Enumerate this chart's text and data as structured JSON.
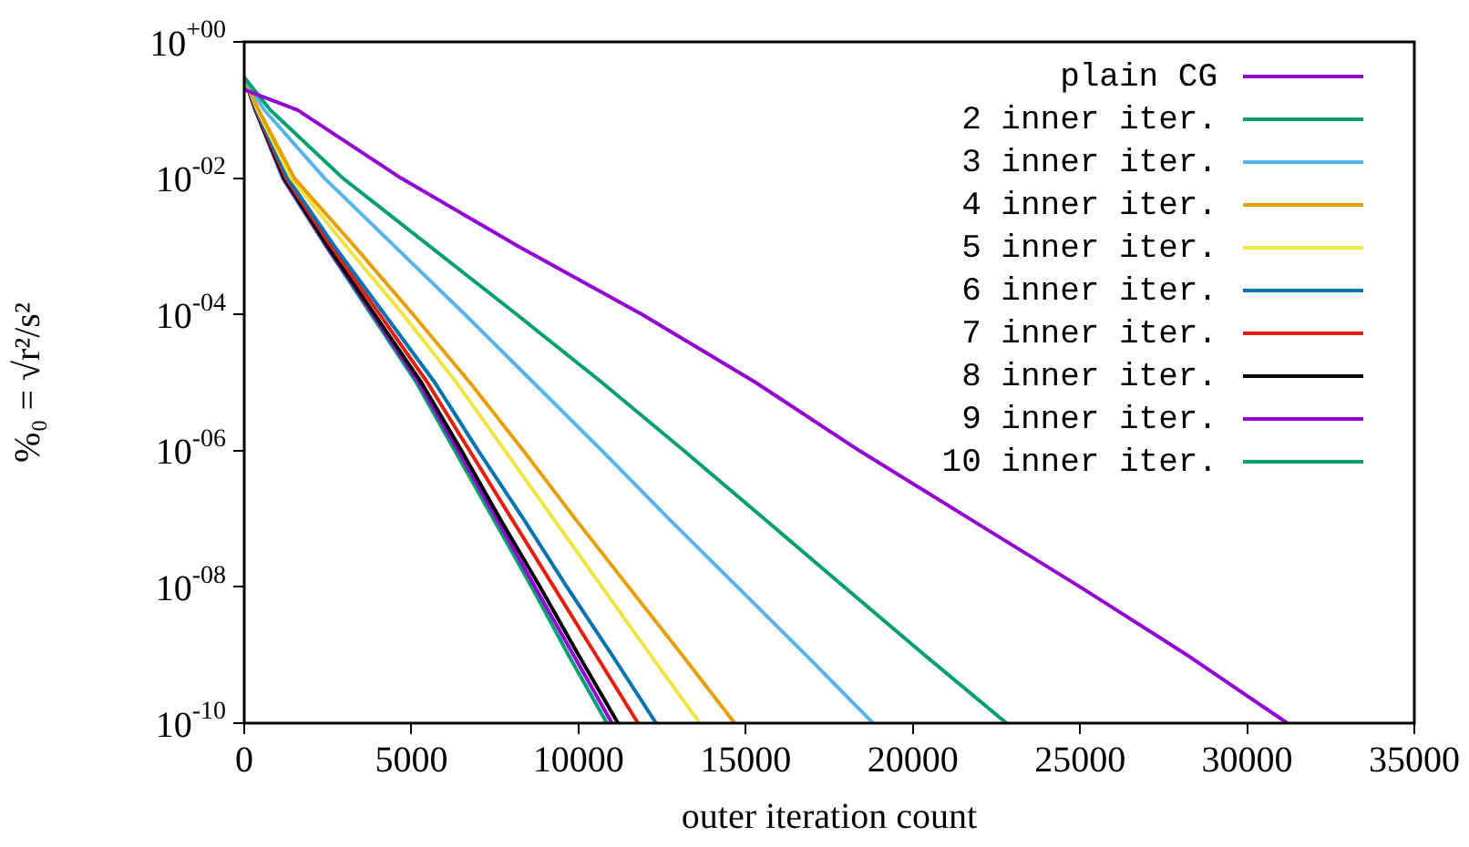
{
  "chart_data": {
    "type": "line",
    "xlabel": "outer iteration count",
    "ylabel": "%₀ = √r²/s²",
    "log": "y",
    "legend": "top right",
    "marker": "none",
    "line_style": "solid",
    "xlim": [
      0,
      35000
    ],
    "xticks": [
      0,
      5000,
      10000,
      15000,
      20000,
      25000,
      30000,
      35000
    ],
    "ylim": [
      1e-10,
      1
    ],
    "yticks": [
      {
        "value": 1,
        "label": "10$^{+00}$"
      },
      {
        "value": 0.01,
        "label": "10$^{-02}$"
      },
      {
        "value": 0.0001,
        "label": "10$^{-04}$"
      },
      {
        "value": 1e-06,
        "label": "10$^{-06}$"
      },
      {
        "value": 1e-08,
        "label": "10$^{-08}$"
      },
      {
        "value": 1e-10,
        "label": "10$^{-10}$"
      }
    ],
    "series": [
      {
        "name": "plain CG",
        "color": "#9400d3",
        "x": [
          0,
          1600,
          4690,
          8200,
          11900,
          15300,
          18400,
          21700,
          25000,
          28200,
          31200
        ],
        "values": [
          0.2,
          0.1,
          0.01,
          0.001,
          0.0001,
          1e-05,
          1e-06,
          1e-07,
          1e-08,
          1e-09,
          1e-10
        ]
      },
      {
        "name": "2 inner iter.",
        "color": "#009e73",
        "x": [
          0,
          780,
          2950,
          5550,
          8150,
          10700,
          13150,
          15550,
          17950,
          20350,
          22800
        ],
        "values": [
          0.3,
          0.1,
          0.01,
          0.001,
          0.0001,
          1e-05,
          1e-06,
          1e-07,
          1e-08,
          1e-09,
          1e-10
        ]
      },
      {
        "name": "3 inner iter.",
        "color": "#56b4e9",
        "x": [
          0,
          600,
          2400,
          4500,
          6600,
          8650,
          10700,
          12700,
          14750,
          16800,
          18810
        ],
        "values": [
          0.3,
          0.1,
          0.01,
          0.001,
          0.0001,
          1e-05,
          1e-06,
          1e-07,
          1e-08,
          1e-09,
          1e-10
        ]
      },
      {
        "name": "4 inner iter.",
        "color": "#e69f00",
        "x": [
          0,
          430,
          1500,
          3300,
          5050,
          6750,
          8350,
          9900,
          11500,
          13100,
          14670
        ],
        "values": [
          0.3,
          0.1,
          0.01,
          0.001,
          0.0001,
          1e-05,
          1e-06,
          1e-07,
          1e-08,
          1e-09,
          1e-10
        ]
      },
      {
        "name": "5 inner iter.",
        "color": "#f0e442",
        "x": [
          0,
          400,
          1400,
          3050,
          4750,
          6350,
          7800,
          9250,
          10700,
          12150,
          13630
        ],
        "values": [
          0.3,
          0.1,
          0.01,
          0.001,
          0.0001,
          1e-05,
          1e-06,
          1e-07,
          1e-08,
          1e-09,
          1e-10
        ]
      },
      {
        "name": "6 inner iter.",
        "color": "#0072b2",
        "x": [
          0,
          370,
          1300,
          2700,
          4200,
          5700,
          7000,
          8350,
          9650,
          11000,
          12320
        ],
        "values": [
          0.3,
          0.1,
          0.01,
          0.001,
          0.0001,
          1e-05,
          1e-06,
          1e-07,
          1e-08,
          1e-09,
          1e-10
        ]
      },
      {
        "name": "7 inner iter.",
        "color": "#e51e10",
        "x": [
          0,
          350,
          1250,
          2600,
          4050,
          5480,
          6740,
          8000,
          9260,
          10520,
          11780
        ],
        "values": [
          0.3,
          0.1,
          0.01,
          0.001,
          0.0001,
          1e-05,
          1e-06,
          1e-07,
          1e-08,
          1e-09,
          1e-10
        ]
      },
      {
        "name": "8 inner iter.",
        "color": "#000000",
        "x": [
          0,
          340,
          1200,
          2500,
          3900,
          5300,
          6500,
          7650,
          8850,
          10000,
          11180
        ],
        "values": [
          0.3,
          0.1,
          0.01,
          0.001,
          0.0001,
          1e-05,
          1e-06,
          1e-07,
          1e-08,
          1e-09,
          1e-10
        ]
      },
      {
        "name": "9 inner iter.",
        "color": "#9400d3",
        "x": [
          0,
          335,
          1170,
          2470,
          3850,
          5220,
          6400,
          7550,
          8700,
          9850,
          11000
        ],
        "values": [
          0.3,
          0.1,
          0.01,
          0.001,
          0.0001,
          1e-05,
          1e-06,
          1e-07,
          1e-08,
          1e-09,
          1e-10
        ]
      },
      {
        "name": "10 inner iter.",
        "color": "#009e73",
        "x": [
          0,
          330,
          1150,
          2450,
          3800,
          5150,
          6300,
          7450,
          8600,
          9700,
          10850
        ],
        "values": [
          0.3,
          0.1,
          0.01,
          0.001,
          0.0001,
          1e-05,
          1e-06,
          1e-07,
          1e-08,
          1e-09,
          1e-10
        ]
      }
    ]
  }
}
